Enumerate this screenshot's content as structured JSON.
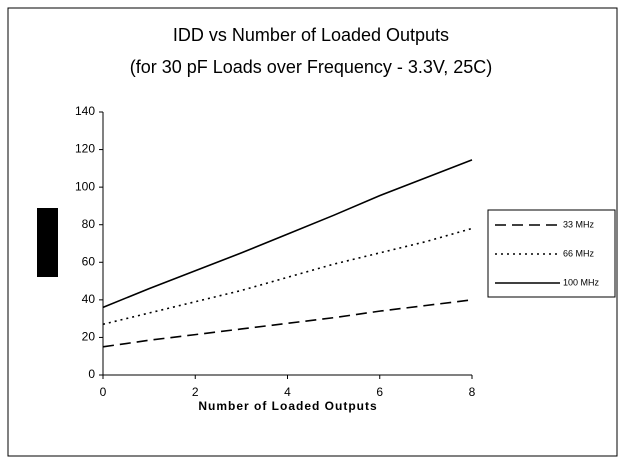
{
  "chart_data": {
    "type": "line",
    "title": "IDD vs Number of Loaded Outputs",
    "subtitle": "(for 30 pF Loads over Frequency - 3.3V, 25C)",
    "x_label": "Number of Loaded Outputs",
    "x": [
      0,
      1,
      2,
      3,
      4,
      5,
      6,
      7,
      8
    ],
    "series": [
      {
        "name": "33 MHz",
        "color": "#000000",
        "dash": "dashed",
        "values": [
          15,
          18.5,
          21.5,
          24.5,
          27.5,
          30.5,
          34,
          37,
          40
        ]
      },
      {
        "name": "66 MHz",
        "color": "#000000",
        "dash": "dotted",
        "values": [
          27,
          33,
          39,
          45,
          52,
          59,
          65,
          71,
          78
        ]
      },
      {
        "name": "100 MHz",
        "color": "#000000",
        "dash": "solid",
        "values": [
          36,
          46,
          55.5,
          65,
          75,
          85,
          95.5,
          105,
          114.5
        ]
      }
    ],
    "xlim": [
      0,
      8
    ],
    "xticks": [
      0,
      2,
      4,
      6,
      8
    ],
    "ylim": [
      0,
      140
    ],
    "yticks": [
      0,
      20,
      40,
      60,
      80,
      100,
      120,
      140
    ],
    "grid": false,
    "legend": "right"
  }
}
